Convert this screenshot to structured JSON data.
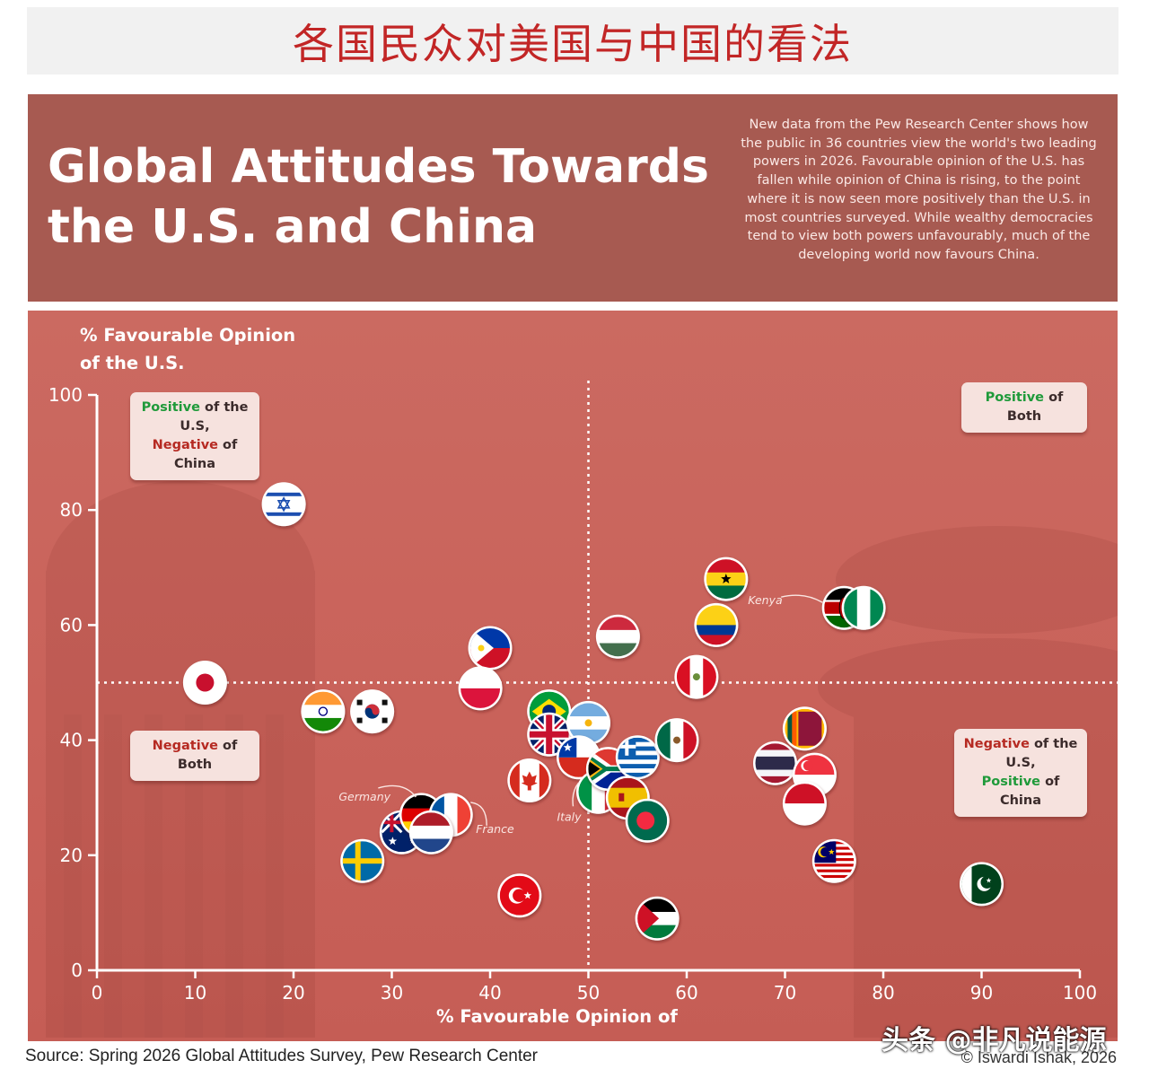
{
  "banner": {
    "title": "各国民众对美国与中国的看法"
  },
  "header": {
    "title": "Global Attitudes Towards the U.S. and China",
    "description": "New data from the Pew Research Center shows how the public in 36 countries view the world's two leading powers in 2026. Favourable opinion of the U.S. has fallen while opinion of China is rising, to the point where it is now seen more positively than the U.S. in most countries surveyed. While wealthy democracies tend to view both powers unfavourably, much of the developing world now favours China."
  },
  "quadrants": {
    "top_left": {
      "line1_a": "Positive",
      "line1_b": " of the U.S,",
      "line2_a": "Negative",
      "line2_b": " of China"
    },
    "top_right": {
      "line1_a": "Positive",
      "line1_b": " of",
      "line2_b": "Both"
    },
    "bottom_left": {
      "line1_a": "Negative",
      "line1_b": " of",
      "line2_b": "Both"
    },
    "bottom_right": {
      "line1_a": "Negative",
      "line1_b": " of the U.S,",
      "line2_a": "Positive",
      "line2_b": " of China"
    }
  },
  "chart_data": {
    "type": "scatter",
    "xlabel": "% Favourable Opinion of",
    "ylabel": "% Favourable Opinion of the U.S.",
    "xlim": [
      0,
      100
    ],
    "ylim": [
      0,
      100
    ],
    "xticks": [
      0,
      10,
      20,
      30,
      40,
      50,
      60,
      70,
      80,
      90,
      100
    ],
    "yticks": [
      0,
      20,
      40,
      60,
      80,
      100
    ],
    "reference_lines": {
      "x": 50,
      "y": 50
    },
    "annotations": [
      "Kenya",
      "Germany",
      "France",
      "Italy"
    ],
    "points": [
      {
        "country": "Israel",
        "x": 19,
        "y": 81,
        "flag": "israel"
      },
      {
        "country": "Japan",
        "x": 11,
        "y": 50,
        "flag": "japan"
      },
      {
        "country": "India",
        "x": 23,
        "y": 45,
        "flag": "india"
      },
      {
        "country": "South Korea",
        "x": 28,
        "y": 45,
        "flag": "south-korea"
      },
      {
        "country": "Sweden",
        "x": 27,
        "y": 19,
        "flag": "sweden"
      },
      {
        "country": "Australia",
        "x": 31,
        "y": 24,
        "flag": "australia"
      },
      {
        "country": "Germany",
        "x": 33,
        "y": 27,
        "flag": "germany"
      },
      {
        "country": "France",
        "x": 36,
        "y": 27,
        "flag": "france"
      },
      {
        "country": "Netherlands",
        "x": 34,
        "y": 24,
        "flag": "netherlands"
      },
      {
        "country": "Philippines",
        "x": 40,
        "y": 56,
        "flag": "philippines"
      },
      {
        "country": "Poland",
        "x": 39,
        "y": 49,
        "flag": "poland"
      },
      {
        "country": "Turkey",
        "x": 43,
        "y": 13,
        "flag": "turkey"
      },
      {
        "country": "Canada",
        "x": 44,
        "y": 33,
        "flag": "canada"
      },
      {
        "country": "Brazil",
        "x": 46,
        "y": 45,
        "flag": "brazil"
      },
      {
        "country": "United Kingdom",
        "x": 46,
        "y": 41,
        "flag": "uk"
      },
      {
        "country": "Argentina",
        "x": 50,
        "y": 43,
        "flag": "argentina"
      },
      {
        "country": "Chile",
        "x": 49,
        "y": 37,
        "flag": "chile"
      },
      {
        "country": "Italy",
        "x": 51,
        "y": 31,
        "flag": "italy"
      },
      {
        "country": "South Africa",
        "x": 52,
        "y": 35,
        "flag": "south-africa"
      },
      {
        "country": "Hungary",
        "x": 53,
        "y": 58,
        "flag": "hungary"
      },
      {
        "country": "Greece",
        "x": 55,
        "y": 37,
        "flag": "greece"
      },
      {
        "country": "Spain",
        "x": 54,
        "y": 30,
        "flag": "spain"
      },
      {
        "country": "Bangladesh",
        "x": 56,
        "y": 26,
        "flag": "bangladesh"
      },
      {
        "country": "Palestine",
        "x": 57,
        "y": 9,
        "flag": "palestine"
      },
      {
        "country": "Mexico",
        "x": 59,
        "y": 40,
        "flag": "mexico"
      },
      {
        "country": "Peru",
        "x": 61,
        "y": 51,
        "flag": "peru"
      },
      {
        "country": "Colombia",
        "x": 63,
        "y": 60,
        "flag": "colombia"
      },
      {
        "country": "Ghana",
        "x": 64,
        "y": 68,
        "flag": "ghana"
      },
      {
        "country": "Thailand",
        "x": 69,
        "y": 36,
        "flag": "thailand"
      },
      {
        "country": "Sri Lanka",
        "x": 72,
        "y": 42,
        "flag": "sri-lanka"
      },
      {
        "country": "Singapore",
        "x": 73,
        "y": 34,
        "flag": "singapore"
      },
      {
        "country": "Indonesia",
        "x": 72,
        "y": 29,
        "flag": "indonesia"
      },
      {
        "country": "Malaysia",
        "x": 75,
        "y": 19,
        "flag": "malaysia"
      },
      {
        "country": "Kenya",
        "x": 76,
        "y": 63,
        "flag": "kenya"
      },
      {
        "country": "Nigeria",
        "x": 78,
        "y": 63,
        "flag": "nigeria"
      },
      {
        "country": "Pakistan",
        "x": 90,
        "y": 15,
        "flag": "pakistan"
      }
    ]
  },
  "footer": {
    "source": "Source: Spring 2026 Global Attitudes Survey, Pew Research Center",
    "credit": "© Iswardi Ishak, 2026",
    "watermark": "头条 @非凡说能源"
  }
}
